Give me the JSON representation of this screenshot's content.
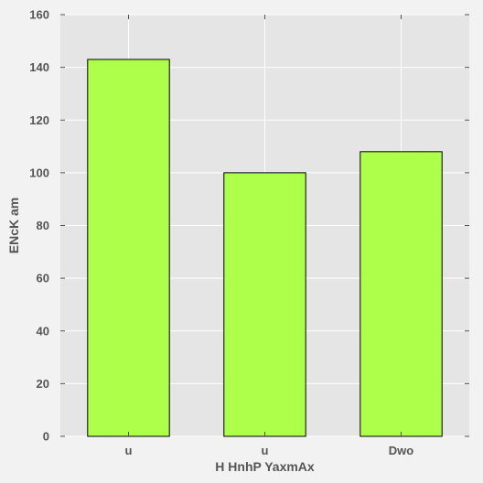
{
  "chart_data": {
    "type": "bar",
    "title": "",
    "xlabel": "H HnhP YaxmAx",
    "ylabel": "ENcK am",
    "categories": [
      "u",
      "u",
      "Dwo"
    ],
    "values": [
      143,
      100,
      108
    ],
    "ylim": [
      0,
      160
    ],
    "yticks": [
      0,
      20,
      40,
      60,
      80,
      100,
      120,
      140,
      160
    ],
    "grid": true,
    "colors": {
      "bar": "#adff4a",
      "edge": "#000000",
      "plot_bg": "#e5e5e5",
      "grid": "#ffffff",
      "page_bg": "#f2f2f2"
    }
  }
}
